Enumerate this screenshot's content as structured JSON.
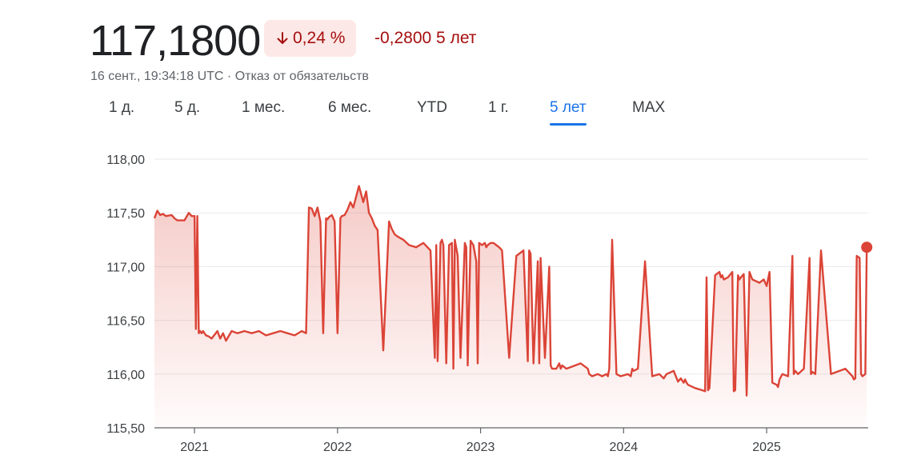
{
  "quote": {
    "price": "117,1800",
    "change_pct": "0,24 %",
    "change_abs": "-0,2800 5 лет",
    "meta": "16 сент., 19:34:18 UTC · Отказ от обязательств"
  },
  "ranges": [
    {
      "label": "1 д.",
      "active": false
    },
    {
      "label": "5 д.",
      "active": false
    },
    {
      "label": "1 мес.",
      "active": false
    },
    {
      "label": "6 мес.",
      "active": false
    },
    {
      "label": "YTD",
      "active": false
    },
    {
      "label": "1 г.",
      "active": false
    },
    {
      "label": "5 лет",
      "active": true
    },
    {
      "label": "MAX",
      "active": false
    }
  ],
  "colors": {
    "line": "#db4437",
    "accent": "#1a73e8",
    "down": "#a50e0e"
  },
  "chart_data": {
    "type": "area",
    "xlim": [
      2020.72,
      2025.71
    ],
    "ylim": [
      115.5,
      118.0
    ],
    "y_ticks": [
      "118,00",
      "117,50",
      "117,00",
      "116,50",
      "116,00",
      "115,50"
    ],
    "x_ticks": [
      "2021",
      "2022",
      "2023",
      "2024",
      "2025"
    ],
    "grid": true,
    "series": [
      {
        "x": [
          2020.72,
          2020.74,
          2020.76,
          2020.78,
          2020.8,
          2020.84,
          2020.86,
          2020.88,
          2020.93,
          2020.96,
          2020.98,
          2021.0,
          2021.01,
          2021.02,
          2021.03,
          2021.04,
          2021.05,
          2021.06,
          2021.08,
          2021.1,
          2021.12,
          2021.16,
          2021.18,
          2021.2,
          2021.22,
          2021.26,
          2021.3,
          2021.35,
          2021.4,
          2021.45,
          2021.5,
          2021.55,
          2021.6,
          2021.65,
          2021.7,
          2021.75,
          2021.78,
          2021.8,
          2021.82,
          2021.84,
          2021.86,
          2021.88,
          2021.9,
          2021.92,
          2021.93,
          2021.94,
          2021.96,
          2021.98,
          2022.0,
          2022.02,
          2022.03,
          2022.05,
          2022.07,
          2022.09,
          2022.11,
          2022.15,
          2022.18,
          2022.2,
          2022.22,
          2022.24,
          2022.26,
          2022.28,
          2022.32,
          2022.36,
          2022.38,
          2022.4,
          2022.42,
          2022.46,
          2022.5,
          2022.55,
          2022.6,
          2022.65,
          2022.68,
          2022.69,
          2022.7,
          2022.72,
          2022.73,
          2022.74,
          2022.76,
          2022.78,
          2022.8,
          2022.81,
          2022.82,
          2022.84,
          2022.86,
          2022.89,
          2022.9,
          2022.91,
          2022.93,
          2022.95,
          2022.97,
          2022.98,
          2022.99,
          2023.01,
          2023.03,
          2023.04,
          2023.05,
          2023.07,
          2023.09,
          2023.11,
          2023.13,
          2023.15,
          2023.2,
          2023.25,
          2023.3,
          2023.33,
          2023.34,
          2023.35,
          2023.37,
          2023.4,
          2023.41,
          2023.42,
          2023.45,
          2023.48,
          2023.49,
          2023.5,
          2023.53,
          2023.55,
          2023.56,
          2023.57,
          2023.6,
          2023.7,
          2023.75,
          2023.76,
          2023.78,
          2023.82,
          2023.85,
          2023.88,
          2023.89,
          2023.9,
          2023.92,
          2023.95,
          2023.98,
          2024.03,
          2024.05,
          2024.06,
          2024.07,
          2024.1,
          2024.15,
          2024.2,
          2024.25,
          2024.28,
          2024.3,
          2024.35,
          2024.38,
          2024.4,
          2024.42,
          2024.43,
          2024.44,
          2024.45,
          2024.5,
          2024.55,
          2024.57,
          2024.58,
          2024.59,
          2024.6,
          2024.64,
          2024.67,
          2024.68,
          2024.69,
          2024.7,
          2024.73,
          2024.76,
          2024.77,
          2024.78,
          2024.8,
          2024.81,
          2024.82,
          2024.84,
          2024.86,
          2024.88,
          2024.9,
          2024.95,
          2024.98,
          2025.0,
          2025.02,
          2025.04,
          2025.07,
          2025.08,
          2025.09,
          2025.11,
          2025.15,
          2025.18,
          2025.19,
          2025.2,
          2025.22,
          2025.26,
          2025.3,
          2025.31,
          2025.32,
          2025.34,
          2025.38,
          2025.45,
          2025.55,
          2025.6,
          2025.61,
          2025.62,
          2025.63,
          2025.65,
          2025.66,
          2025.67,
          2025.69,
          2025.7
        ],
        "y": [
          117.45,
          117.52,
          117.48,
          117.49,
          117.47,
          117.48,
          117.45,
          117.43,
          117.43,
          117.5,
          117.47,
          117.47,
          116.42,
          117.47,
          116.38,
          116.4,
          116.38,
          116.4,
          116.36,
          116.35,
          116.33,
          116.4,
          116.33,
          116.38,
          116.31,
          116.4,
          116.38,
          116.4,
          116.38,
          116.4,
          116.36,
          116.38,
          116.4,
          116.38,
          116.36,
          116.4,
          116.38,
          117.55,
          117.54,
          117.47,
          117.55,
          117.42,
          116.38,
          117.45,
          117.44,
          117.46,
          117.48,
          117.42,
          116.38,
          117.45,
          117.47,
          117.48,
          117.53,
          117.6,
          117.55,
          117.75,
          117.6,
          117.7,
          117.5,
          117.45,
          117.38,
          117.34,
          116.22,
          117.42,
          117.35,
          117.3,
          117.28,
          117.25,
          117.2,
          117.18,
          117.22,
          117.15,
          116.15,
          117.2,
          116.12,
          117.22,
          117.25,
          117.2,
          116.1,
          117.2,
          117.22,
          116.05,
          117.25,
          117.1,
          116.15,
          117.22,
          117.18,
          116.08,
          117.24,
          117.2,
          117.05,
          116.1,
          117.22,
          117.2,
          117.22,
          117.18,
          117.2,
          117.22,
          117.22,
          117.2,
          117.18,
          117.15,
          116.15,
          117.1,
          117.15,
          116.12,
          117.15,
          117.12,
          116.1,
          117.05,
          116.1,
          117.08,
          116.15,
          117.0,
          116.08,
          116.05,
          116.05,
          116.1,
          116.05,
          116.08,
          116.05,
          116.1,
          116.05,
          116.0,
          115.98,
          116.0,
          115.98,
          116.0,
          115.98,
          116.05,
          117.25,
          116.0,
          115.98,
          116.0,
          115.98,
          116.05,
          116.03,
          116.05,
          117.05,
          115.98,
          116.0,
          115.96,
          116.0,
          116.03,
          115.93,
          115.96,
          115.92,
          115.95,
          115.92,
          115.9,
          115.87,
          115.85,
          115.84,
          116.9,
          115.85,
          115.87,
          116.92,
          116.95,
          116.9,
          116.92,
          116.88,
          116.9,
          116.95,
          115.84,
          115.85,
          116.92,
          116.88,
          116.9,
          116.93,
          115.8,
          116.95,
          116.88,
          116.85,
          116.88,
          116.82,
          116.95,
          115.92,
          115.9,
          115.88,
          115.95,
          116.0,
          115.98,
          117.1,
          116.0,
          116.03,
          116.0,
          116.05,
          117.08,
          116.0,
          116.02,
          116.0,
          117.15,
          116.0,
          116.05,
          115.98,
          115.95,
          115.96,
          117.1,
          117.08,
          116.0,
          115.98,
          116.0,
          117.18
        ]
      }
    ]
  }
}
